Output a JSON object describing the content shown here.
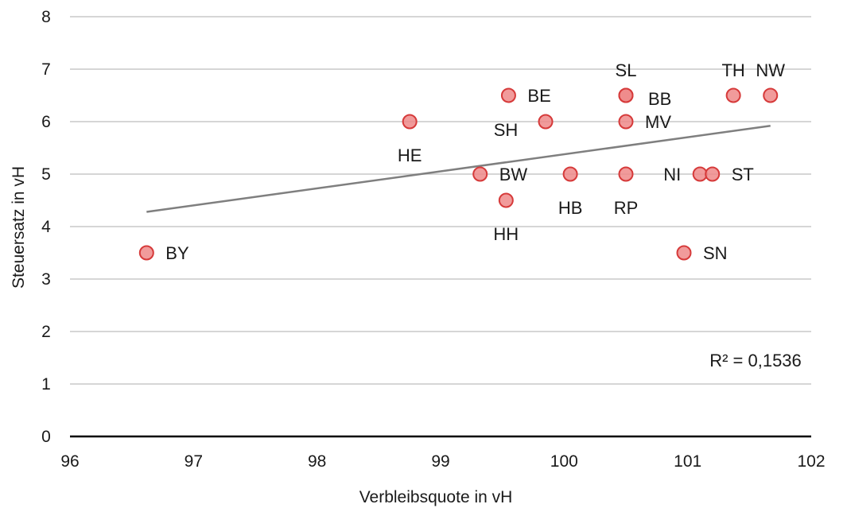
{
  "chart_data": {
    "type": "scatter",
    "xlabel": "Verbleibsquote in vH",
    "ylabel": "Steuersatz in vH",
    "xlim": [
      96,
      102
    ],
    "ylim": [
      0,
      8
    ],
    "xticks": [
      96,
      97,
      98,
      99,
      100,
      101,
      102
    ],
    "yticks": [
      0,
      1,
      2,
      3,
      4,
      5,
      6,
      7,
      8
    ],
    "x_tick_labels": [
      "96",
      "97",
      "98",
      "99",
      "100",
      "101",
      "102"
    ],
    "y_tick_labels": [
      "0",
      "1",
      "2",
      "3",
      "4",
      "5",
      "6",
      "7",
      "8"
    ],
    "grid": "horizontal",
    "points": [
      {
        "label": "BY",
        "x": 96.62,
        "y": 3.5,
        "label_pos": "right"
      },
      {
        "label": "HE",
        "x": 98.75,
        "y": 6.0,
        "label_pos": "below"
      },
      {
        "label": "BE",
        "x": 99.55,
        "y": 6.5,
        "label_pos": "right"
      },
      {
        "label": "SH",
        "x": 99.85,
        "y": 6.0,
        "label_pos": "below-left"
      },
      {
        "label": "BW",
        "x": 99.32,
        "y": 5.0,
        "label_pos": "right"
      },
      {
        "label": "HH",
        "x": 99.53,
        "y": 4.5,
        "label_pos": "below"
      },
      {
        "label": "HB",
        "x": 100.05,
        "y": 5.0,
        "label_pos": "below"
      },
      {
        "label": "SL",
        "x": 100.5,
        "y": 6.5,
        "label_pos": "above"
      },
      {
        "label": "BB",
        "x": 100.5,
        "y": 6.5,
        "label_pos": "right-below"
      },
      {
        "label": "MV",
        "x": 100.5,
        "y": 6.0,
        "label_pos": "right"
      },
      {
        "label": "RP",
        "x": 100.5,
        "y": 5.0,
        "label_pos": "below"
      },
      {
        "label": "SN",
        "x": 100.97,
        "y": 3.5,
        "label_pos": "right"
      },
      {
        "label": "NI",
        "x": 101.1,
        "y": 5.0,
        "label_pos": "left"
      },
      {
        "label": "ST",
        "x": 101.2,
        "y": 5.0,
        "label_pos": "right"
      },
      {
        "label": "TH",
        "x": 101.37,
        "y": 6.5,
        "label_pos": "above"
      },
      {
        "label": "NW",
        "x": 101.67,
        "y": 6.5,
        "label_pos": "above"
      }
    ],
    "trendline": {
      "x": [
        96.62,
        101.67
      ],
      "y": [
        4.28,
        5.92
      ]
    },
    "annotation": "R² = 0,1536",
    "colors": {
      "marker_fill": "#ef8a8a",
      "marker_stroke": "#d63a3a",
      "trendline": "#7f7f7f",
      "grid": "#c8c8c8",
      "axis": "#000000"
    }
  }
}
